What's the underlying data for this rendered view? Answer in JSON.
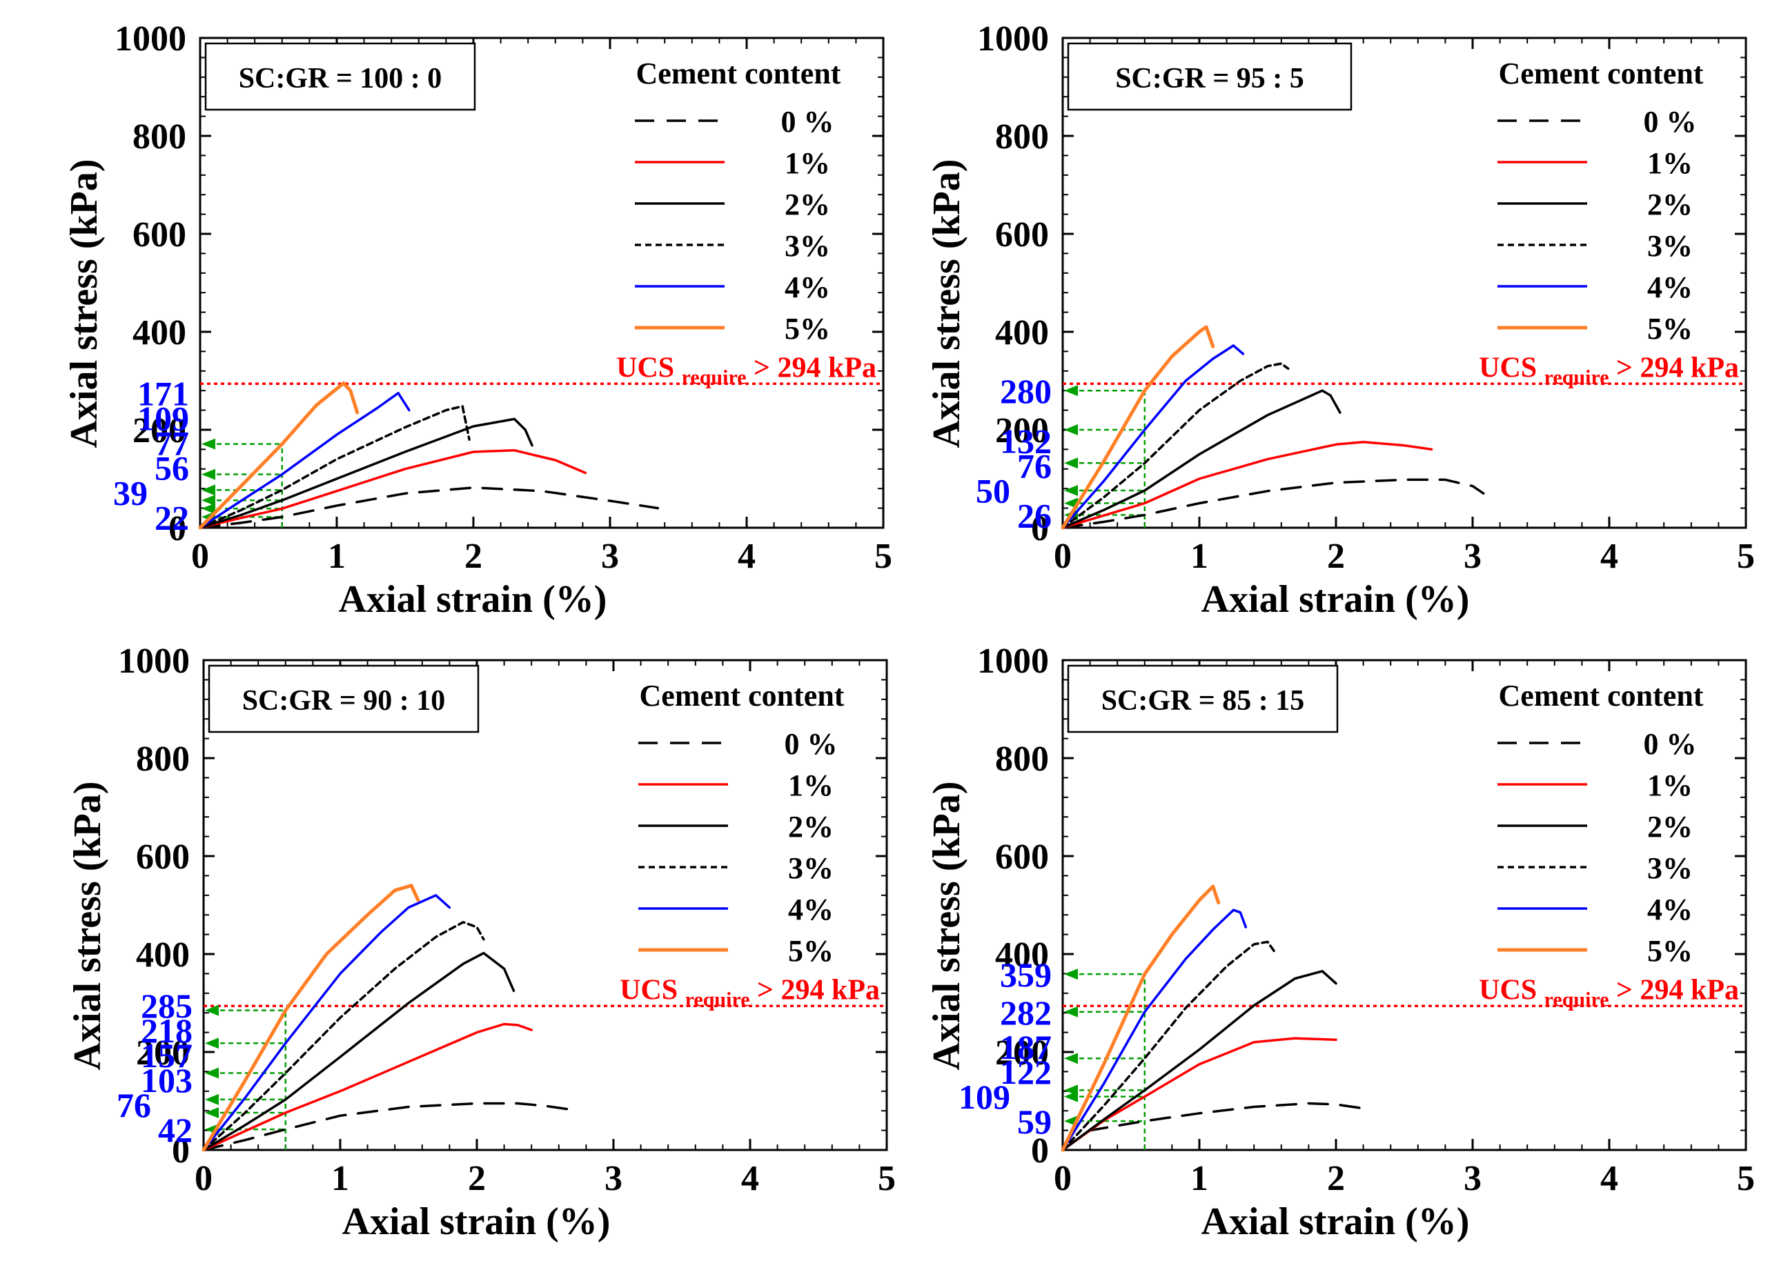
{
  "chart_data": [
    {
      "type": "line",
      "ratio_label": "SC:GR = 100 : 0",
      "xlabel": "Axial strain (%)",
      "ylabel": "Axial stress (kPa)",
      "xlim": [
        0,
        5
      ],
      "ylim": [
        0,
        1000
      ],
      "x_ticks": [
        "0",
        "1",
        "2",
        "3",
        "4",
        "5"
      ],
      "y_ticks": [
        "0",
        "200",
        "400",
        "600",
        "800",
        "1000"
      ],
      "legend_title": "Cement content",
      "ucs_line": {
        "y": 294,
        "label_main": "UCS",
        "label_sub": "require",
        "label_rest": "> 294 kPa"
      },
      "marker_strain": 0.6,
      "markers": [
        {
          "value": 171,
          "label": "171"
        },
        {
          "value": 109,
          "label": "109"
        },
        {
          "value": 77,
          "label": "77"
        },
        {
          "value": 56,
          "label": "56"
        },
        {
          "value": 39,
          "label": "39"
        },
        {
          "value": 22,
          "label": "22"
        }
      ],
      "series": [
        {
          "name": "0 %",
          "x": [
            0,
            0.3,
            0.6,
            1.0,
            1.5,
            2.0,
            2.5,
            3.0,
            3.35
          ],
          "y": [
            0,
            10,
            22,
            45,
            70,
            82,
            75,
            55,
            40
          ]
        },
        {
          "name": "1%",
          "x": [
            0,
            0.3,
            0.6,
            1.0,
            1.5,
            2.0,
            2.3,
            2.6,
            2.82
          ],
          "y": [
            0,
            20,
            39,
            75,
            120,
            155,
            158,
            138,
            112
          ]
        },
        {
          "name": "2%",
          "x": [
            0,
            0.3,
            0.6,
            1.0,
            1.5,
            2.0,
            2.3,
            2.38,
            2.43
          ],
          "y": [
            0,
            26,
            56,
            100,
            155,
            207,
            222,
            200,
            168
          ]
        },
        {
          "name": "3%",
          "x": [
            0,
            0.3,
            0.6,
            1.0,
            1.5,
            1.8,
            1.92,
            1.97
          ],
          "y": [
            0,
            36,
            77,
            140,
            205,
            240,
            248,
            180
          ]
        },
        {
          "name": "4%",
          "x": [
            0,
            0.3,
            0.6,
            1.0,
            1.3,
            1.45,
            1.53
          ],
          "y": [
            0,
            55,
            109,
            190,
            245,
            275,
            240
          ]
        },
        {
          "name": "5%",
          "x": [
            0,
            0.3,
            0.6,
            0.85,
            1.05,
            1.1,
            1.15
          ],
          "y": [
            0,
            85,
            171,
            250,
            295,
            280,
            235
          ]
        }
      ]
    },
    {
      "type": "line",
      "ratio_label": "SC:GR = 95 : 5",
      "xlabel": "Axial strain (%)",
      "ylabel": "Axial stress (kPa)",
      "xlim": [
        0,
        5
      ],
      "ylim": [
        0,
        1000
      ],
      "x_ticks": [
        "0",
        "1",
        "2",
        "3",
        "4",
        "5"
      ],
      "y_ticks": [
        "0",
        "200",
        "400",
        "600",
        "800",
        "1000"
      ],
      "legend_title": "Cement content",
      "ucs_line": {
        "y": 294,
        "label_main": "UCS",
        "label_sub": "require",
        "label_rest": "> 294 kPa"
      },
      "marker_strain": 0.6,
      "markers": [
        {
          "value": 280,
          "label": "280"
        },
        {
          "value": 200,
          "label": ""
        },
        {
          "value": 132,
          "label": "132"
        },
        {
          "value": 76,
          "label": "76"
        },
        {
          "value": 50,
          "label": "50"
        },
        {
          "value": 26,
          "label": "26"
        }
      ],
      "series": [
        {
          "name": "0 %",
          "x": [
            0,
            0.3,
            0.6,
            1.0,
            1.5,
            2.0,
            2.5,
            2.8,
            3.0,
            3.08
          ],
          "y": [
            0,
            12,
            26,
            50,
            75,
            92,
            98,
            98,
            85,
            70
          ]
        },
        {
          "name": "1%",
          "x": [
            0,
            0.3,
            0.6,
            1.0,
            1.5,
            2.0,
            2.2,
            2.5,
            2.7
          ],
          "y": [
            0,
            25,
            50,
            100,
            140,
            170,
            175,
            168,
            160
          ]
        },
        {
          "name": "2%",
          "x": [
            0,
            0.3,
            0.6,
            1.0,
            1.5,
            1.9,
            1.96,
            2.03
          ],
          "y": [
            0,
            36,
            76,
            150,
            230,
            280,
            270,
            235
          ]
        },
        {
          "name": "3%",
          "x": [
            0,
            0.3,
            0.6,
            1.0,
            1.3,
            1.5,
            1.6,
            1.65
          ],
          "y": [
            0,
            62,
            132,
            240,
            300,
            330,
            335,
            325
          ]
        },
        {
          "name": "4%",
          "x": [
            0,
            0.3,
            0.6,
            0.9,
            1.1,
            1.25,
            1.32
          ],
          "y": [
            0,
            95,
            200,
            300,
            345,
            372,
            355
          ]
        },
        {
          "name": "5%",
          "x": [
            0,
            0.3,
            0.6,
            0.8,
            1.0,
            1.05,
            1.1
          ],
          "y": [
            0,
            135,
            280,
            350,
            400,
            410,
            370
          ]
        }
      ]
    },
    {
      "type": "line",
      "ratio_label": "SC:GR = 90 : 10",
      "xlabel": "Axial strain (%)",
      "ylabel": "Axial stress (kPa)",
      "xlim": [
        0,
        5
      ],
      "ylim": [
        0,
        1000
      ],
      "x_ticks": [
        "0",
        "1",
        "2",
        "3",
        "4",
        "5"
      ],
      "y_ticks": [
        "0",
        "200",
        "400",
        "600",
        "800",
        "1000"
      ],
      "legend_title": "Cement content",
      "ucs_line": {
        "y": 294,
        "label_main": "UCS",
        "label_sub": "require",
        "label_rest": "> 294 kPa"
      },
      "marker_strain": 0.6,
      "markers": [
        {
          "value": 285,
          "label": "285"
        },
        {
          "value": 218,
          "label": "218"
        },
        {
          "value": 157,
          "label": "157"
        },
        {
          "value": 103,
          "label": "103"
        },
        {
          "value": 76,
          "label": "76"
        },
        {
          "value": 42,
          "label": "42"
        }
      ],
      "series": [
        {
          "name": "0 %",
          "x": [
            0,
            0.3,
            0.6,
            1.0,
            1.5,
            2.0,
            2.3,
            2.5,
            2.7
          ],
          "y": [
            0,
            20,
            42,
            70,
            88,
            95,
            95,
            90,
            82
          ]
        },
        {
          "name": "1%",
          "x": [
            0,
            0.3,
            0.6,
            1.0,
            1.5,
            2.0,
            2.2,
            2.3,
            2.4
          ],
          "y": [
            0,
            38,
            76,
            120,
            180,
            240,
            257,
            255,
            245
          ]
        },
        {
          "name": "2%",
          "x": [
            0,
            0.3,
            0.6,
            1.0,
            1.5,
            1.9,
            2.05,
            2.2,
            2.27
          ],
          "y": [
            0,
            50,
            103,
            190,
            300,
            380,
            402,
            370,
            325
          ]
        },
        {
          "name": "3%",
          "x": [
            0,
            0.3,
            0.6,
            1.0,
            1.4,
            1.7,
            1.9,
            2.0,
            2.05
          ],
          "y": [
            0,
            75,
            157,
            270,
            370,
            435,
            465,
            455,
            430
          ]
        },
        {
          "name": "4%",
          "x": [
            0,
            0.3,
            0.6,
            1.0,
            1.3,
            1.5,
            1.7,
            1.8
          ],
          "y": [
            0,
            105,
            218,
            360,
            445,
            495,
            520,
            495
          ]
        },
        {
          "name": "5%",
          "x": [
            0,
            0.3,
            0.6,
            0.9,
            1.2,
            1.4,
            1.52,
            1.57
          ],
          "y": [
            0,
            140,
            285,
            400,
            480,
            530,
            540,
            510
          ]
        }
      ]
    },
    {
      "type": "line",
      "ratio_label": "SC:GR = 85 : 15",
      "xlabel": "Axial strain (%)",
      "ylabel": "Axial stress (kPa)",
      "xlim": [
        0,
        5
      ],
      "ylim": [
        0,
        1000
      ],
      "x_ticks": [
        "0",
        "1",
        "2",
        "3",
        "4",
        "5"
      ],
      "y_ticks": [
        "0",
        "200",
        "400",
        "600",
        "800",
        "1000"
      ],
      "legend_title": "Cement content",
      "ucs_line": {
        "y": 294,
        "label_main": "UCS",
        "label_sub": "require",
        "label_rest": "> 294 kPa"
      },
      "marker_strain": 0.6,
      "markers": [
        {
          "value": 359,
          "label": "359"
        },
        {
          "value": 282,
          "label": "282"
        },
        {
          "value": 187,
          "label": "187"
        },
        {
          "value": 122,
          "label": "122"
        },
        {
          "value": 109,
          "label": "109"
        },
        {
          "value": 59,
          "label": "59"
        }
      ],
      "series": [
        {
          "name": "0 %",
          "x": [
            0,
            0.2,
            0.6,
            1.0,
            1.4,
            1.8,
            2.0,
            2.2
          ],
          "y": [
            0,
            40,
            59,
            75,
            88,
            95,
            93,
            85
          ]
        },
        {
          "name": "1%",
          "x": [
            0,
            0.3,
            0.6,
            1.0,
            1.4,
            1.7,
            2.0
          ],
          "y": [
            0,
            60,
            109,
            175,
            220,
            228,
            225
          ]
        },
        {
          "name": "2%",
          "x": [
            0,
            0.3,
            0.6,
            1.0,
            1.4,
            1.7,
            1.9,
            2.0
          ],
          "y": [
            0,
            62,
            122,
            205,
            295,
            350,
            365,
            340
          ]
        },
        {
          "name": "3%",
          "x": [
            0,
            0.3,
            0.6,
            0.9,
            1.2,
            1.4,
            1.5,
            1.55
          ],
          "y": [
            0,
            90,
            187,
            290,
            375,
            420,
            425,
            405
          ]
        },
        {
          "name": "4%",
          "x": [
            0,
            0.3,
            0.6,
            0.9,
            1.1,
            1.25,
            1.3,
            1.34
          ],
          "y": [
            0,
            135,
            282,
            390,
            450,
            490,
            485,
            455
          ]
        },
        {
          "name": "5%",
          "x": [
            0,
            0.3,
            0.6,
            0.8,
            1.0,
            1.1,
            1.14
          ],
          "y": [
            0,
            175,
            359,
            440,
            510,
            538,
            505
          ]
        }
      ]
    }
  ],
  "colors": {
    "series": [
      "#000000",
      "#ff0000",
      "#000000",
      "#000000",
      "#0000ff",
      "#ff7f27"
    ],
    "dash": [
      "28,18",
      "",
      "",
      "9,6",
      "",
      ""
    ],
    "ucs_line": "#ff0000",
    "marker": "#00a000",
    "marker_text": "#0000ff"
  }
}
